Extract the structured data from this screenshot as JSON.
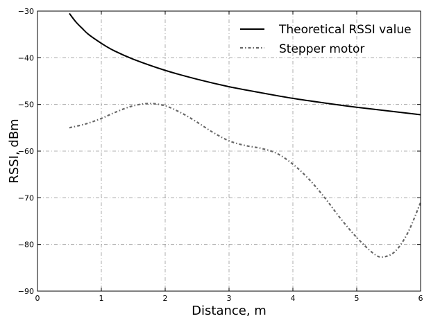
{
  "chart_data": {
    "type": "line",
    "title": "",
    "xlabel": "Distance, m",
    "ylabel": "RSSI, dBm",
    "xlim": [
      0,
      6
    ],
    "ylim": [
      -90,
      -30
    ],
    "xticks": [
      0,
      1,
      2,
      3,
      4,
      5,
      6
    ],
    "yticks": [
      -90,
      -80,
      -70,
      -60,
      -50,
      -40,
      -30
    ],
    "xtick_labels": [
      "0",
      "1",
      "2",
      "3",
      "4",
      "5",
      "6"
    ],
    "ytick_labels": [
      "−90",
      "−80",
      "−70",
      "−60",
      "−50",
      "−40",
      "−30"
    ],
    "grid": true,
    "legend_position": "top-right",
    "series": [
      {
        "name": "Theoretical RSSI value",
        "color": "#000000",
        "style": "solid",
        "x": [
          0.5,
          0.6,
          0.7,
          0.8,
          1.0,
          1.2,
          1.5,
          2.0,
          2.5,
          3.0,
          3.5,
          4.0,
          4.5,
          5.0,
          5.5,
          6.0
        ],
        "y": [
          -30.5,
          -32.3,
          -33.7,
          -35.0,
          -36.9,
          -38.5,
          -40.3,
          -42.7,
          -44.6,
          -46.2,
          -47.5,
          -48.7,
          -49.7,
          -50.6,
          -51.4,
          -52.2
        ]
      },
      {
        "name": "Stepper motor",
        "color": "#666666",
        "style": "dashdot",
        "x": [
          0.5,
          0.75,
          1.0,
          1.25,
          1.5,
          1.75,
          2.0,
          2.25,
          2.5,
          2.75,
          3.0,
          3.25,
          3.5,
          3.75,
          4.0,
          4.25,
          4.5,
          4.75,
          5.0,
          5.25,
          5.4,
          5.6,
          5.8,
          6.0
        ],
        "y": [
          -55.0,
          -54.2,
          -53.0,
          -51.5,
          -50.3,
          -49.8,
          -50.3,
          -51.8,
          -53.8,
          -56.0,
          -57.8,
          -58.8,
          -59.4,
          -60.5,
          -62.8,
          -66.0,
          -70.0,
          -74.5,
          -78.5,
          -81.8,
          -82.7,
          -81.5,
          -77.5,
          -71.0
        ]
      }
    ]
  }
}
